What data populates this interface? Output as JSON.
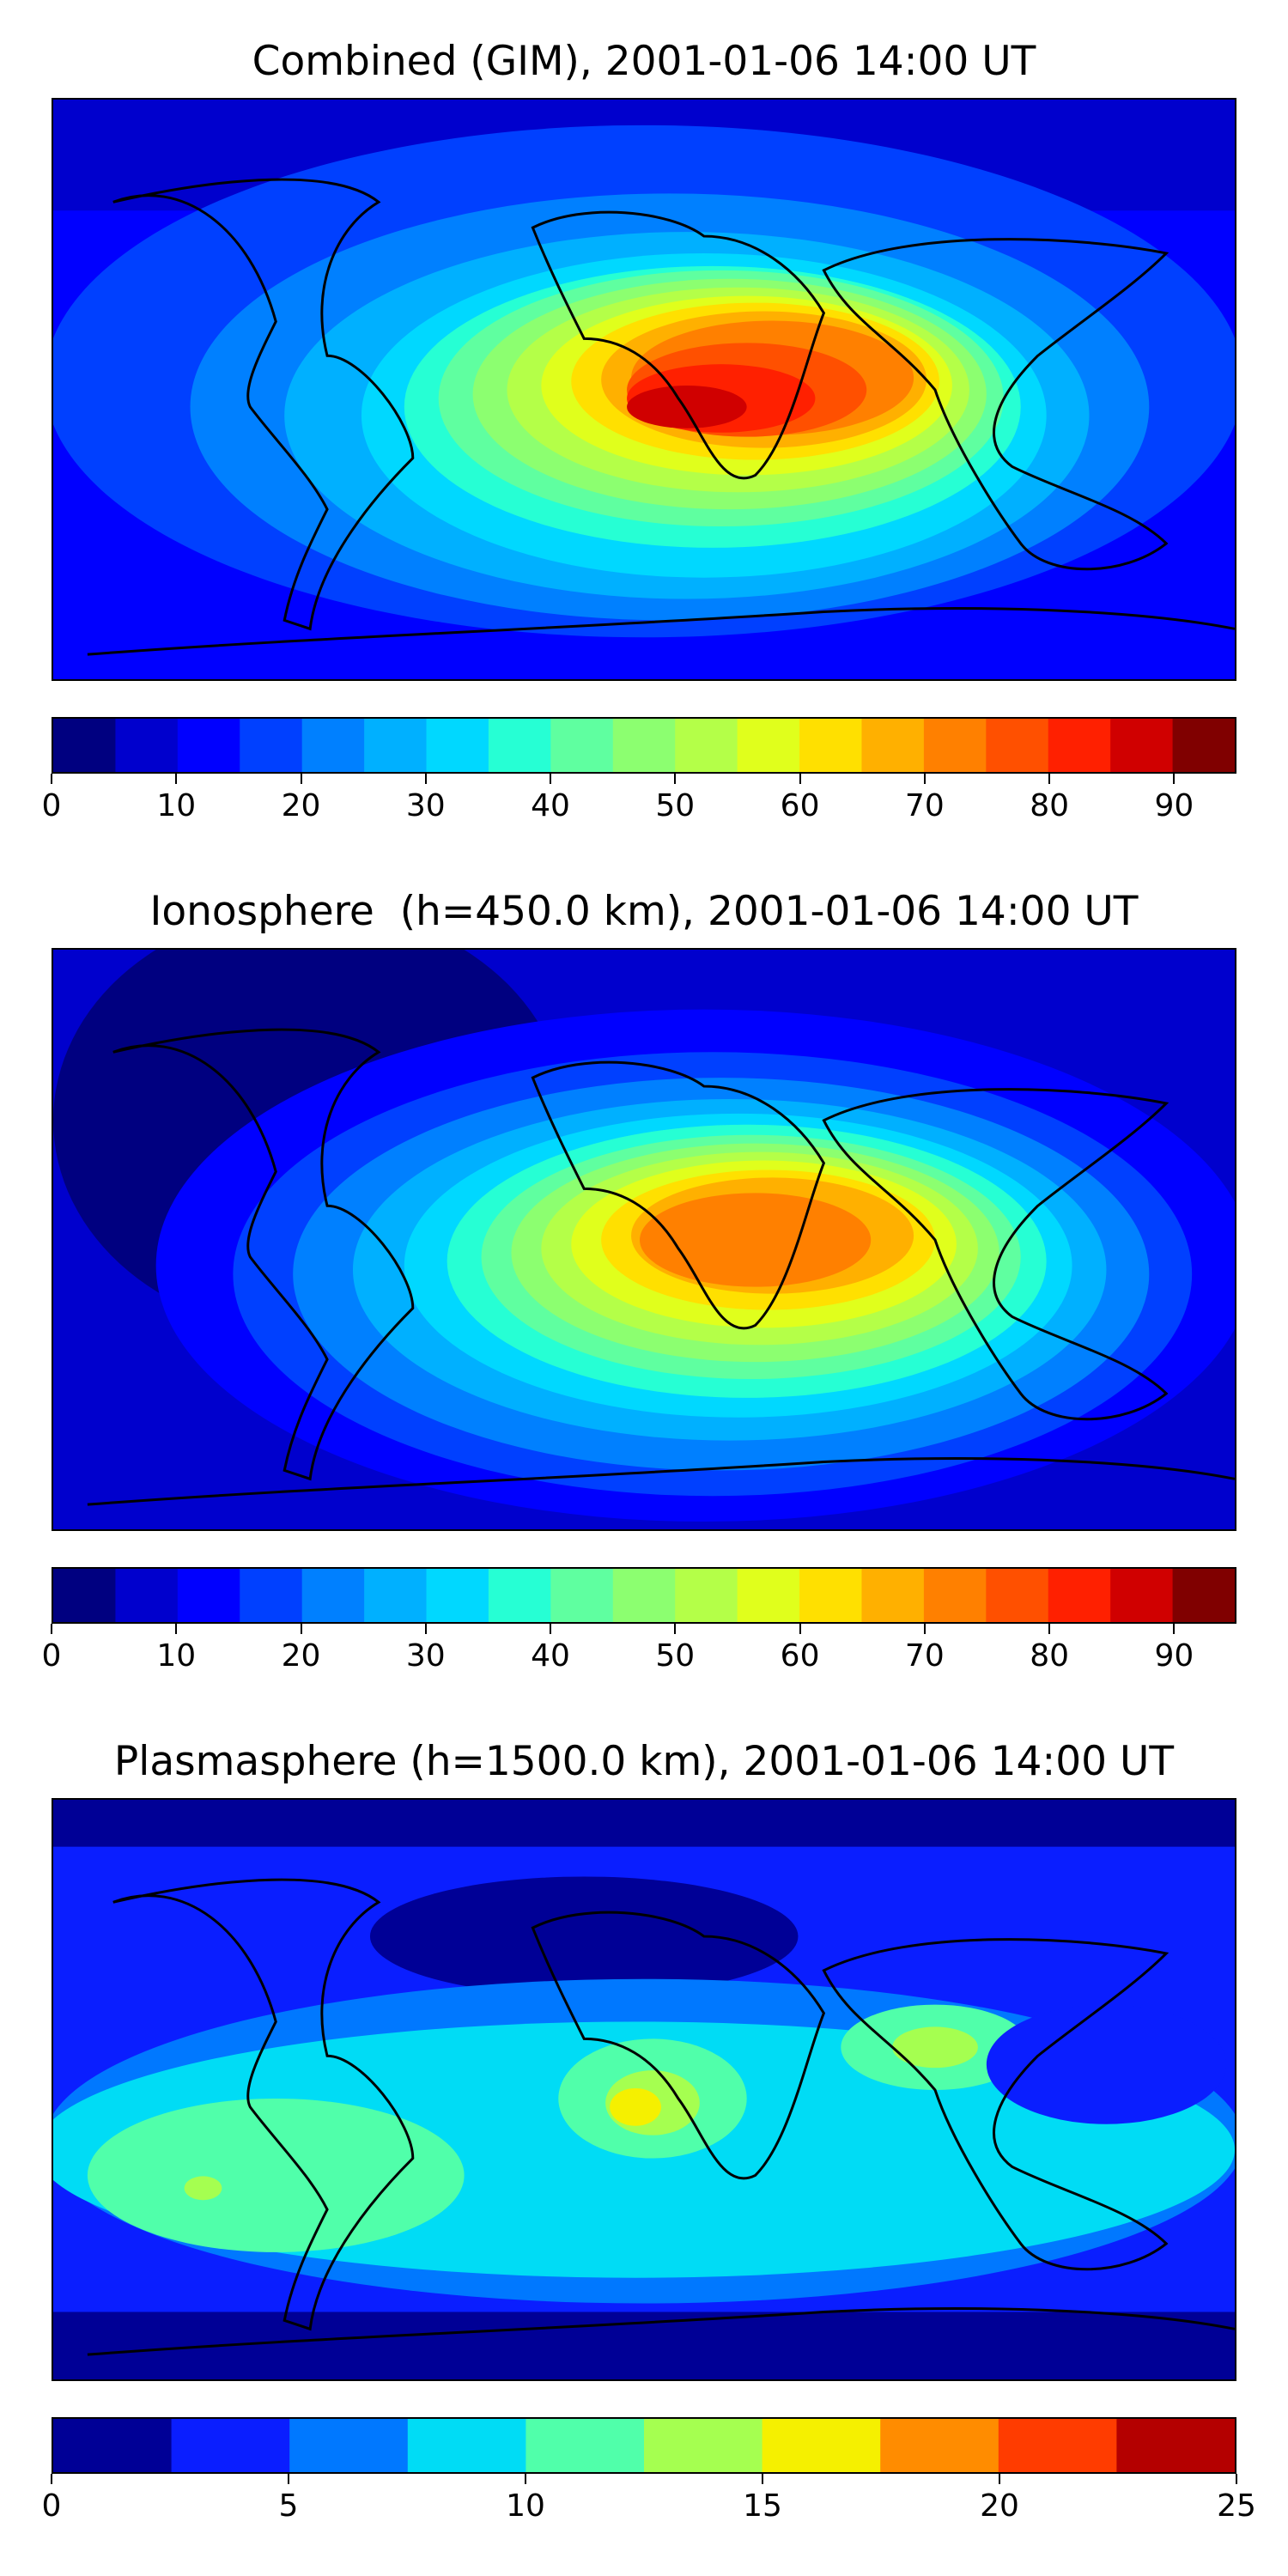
{
  "panels": [
    {
      "title": "Combined (GIM), 2001-01-06 14:00 UT",
      "ticks": [
        "0",
        "10",
        "20",
        "30",
        "40",
        "50",
        "60",
        "70",
        "80",
        "90"
      ],
      "tick_values": [
        0,
        10,
        20,
        30,
        40,
        50,
        60,
        70,
        80,
        90
      ],
      "vmin": 0,
      "vmax": 95,
      "levels": [
        "#000080",
        "#0000cd",
        "#0000ff",
        "#0040ff",
        "#0080ff",
        "#00b0ff",
        "#00d8ff",
        "#26ffd4",
        "#5fffa0",
        "#8cff70",
        "#b4ff48",
        "#e0ff1c",
        "#ffe000",
        "#ffb000",
        "#ff8000",
        "#ff5000",
        "#ff2000",
        "#d00000",
        "#800000"
      ]
    },
    {
      "title": "Ionosphere  (h=450.0 km), 2001-01-06 14:00 UT",
      "ticks": [
        "0",
        "10",
        "20",
        "30",
        "40",
        "50",
        "60",
        "70",
        "80",
        "90"
      ],
      "tick_values": [
        0,
        10,
        20,
        30,
        40,
        50,
        60,
        70,
        80,
        90
      ],
      "vmin": 0,
      "vmax": 95,
      "levels": [
        "#000080",
        "#0000cd",
        "#0000ff",
        "#0040ff",
        "#0080ff",
        "#00b0ff",
        "#00d8ff",
        "#26ffd4",
        "#5fffa0",
        "#8cff70",
        "#b4ff48",
        "#e0ff1c",
        "#ffe000",
        "#ffb000",
        "#ff8000",
        "#ff5000",
        "#ff2000",
        "#d00000",
        "#800000"
      ]
    },
    {
      "title": "Plasmasphere (h=1500.0 km), 2001-01-06 14:00 UT",
      "ticks": [
        "0",
        "5",
        "10",
        "15",
        "20",
        "25"
      ],
      "tick_values": [
        0,
        5,
        10,
        15,
        20,
        25
      ],
      "vmin": 0,
      "vmax": 25,
      "levels": [
        "#000096",
        "#0a1eff",
        "#0078ff",
        "#00dcf5",
        "#50ffaa",
        "#a5ff50",
        "#f5f000",
        "#ff8c00",
        "#ff3c00",
        "#b40000"
      ]
    }
  ]
}
